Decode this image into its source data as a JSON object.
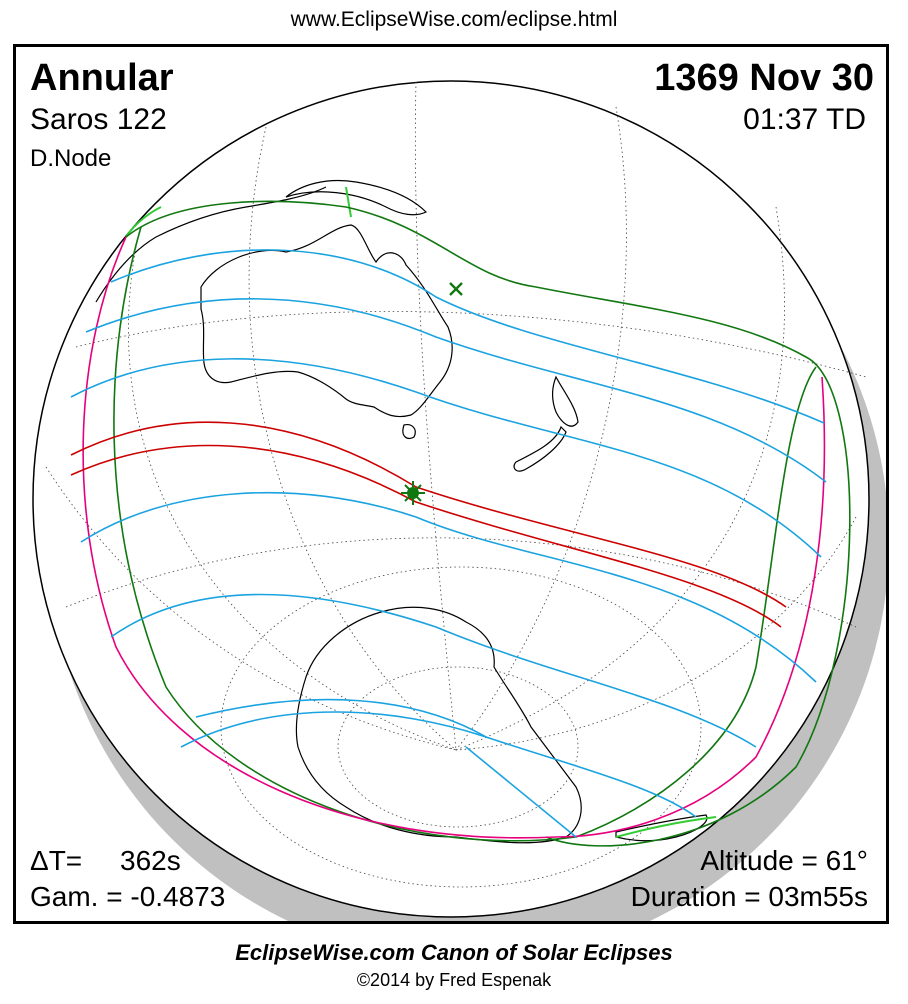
{
  "header": {
    "url": "www.EclipseWise.com/eclipse.html"
  },
  "eclipse": {
    "type": "Annular",
    "saros": "Saros 122",
    "node": "D.Node",
    "date": "1369 Nov 30",
    "time": "01:37 TD",
    "delta_t_label": "ΔT=",
    "delta_t_value": "362s",
    "gamma": "Gam. = -0.4873",
    "altitude": "Altitude = 61°",
    "duration": "Duration = 03m55s"
  },
  "colors": {
    "central_path": "#cc0000",
    "penumbral_limits": "#00cccc",
    "penumbral_lines": "#1aa3e0",
    "rise_set_curves": "#e6007e",
    "outer_limits": "#117711",
    "land_highlight": "#33cc33",
    "globe_shadow": "#c0c0c0"
  },
  "markers": {
    "greatest_eclipse": "star-icon",
    "subsolar_point": "x-mark-icon"
  },
  "footer": {
    "canon": "EclipseWise.com Canon of Solar Eclipses",
    "copyright": "©2014 by Fred Espenak"
  }
}
